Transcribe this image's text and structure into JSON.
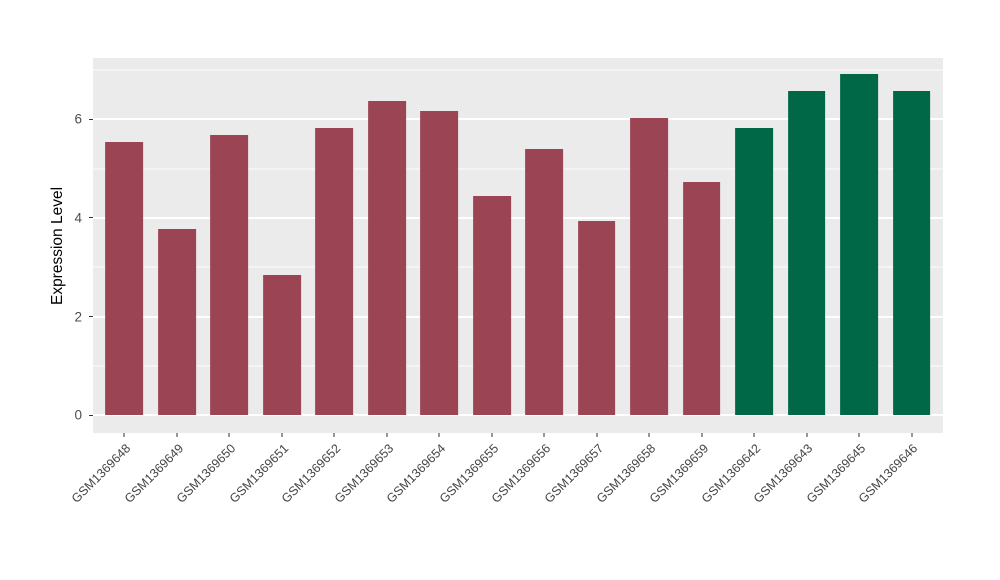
{
  "chart_data": {
    "type": "bar",
    "title": "",
    "xlabel": "",
    "ylabel": "Expression Level",
    "categories": [
      "GSM1369648",
      "GSM1369649",
      "GSM1369650",
      "GSM1369651",
      "GSM1369652",
      "GSM1369653",
      "GSM1369654",
      "GSM1369655",
      "GSM1369656",
      "GSM1369657",
      "GSM1369658",
      "GSM1369659",
      "GSM1369642",
      "GSM1369643",
      "GSM1369645",
      "GSM1369646"
    ],
    "values": [
      5.53,
      3.77,
      5.68,
      2.85,
      5.82,
      6.37,
      6.16,
      4.44,
      5.39,
      3.94,
      6.02,
      4.72,
      5.82,
      6.57,
      6.91,
      6.57
    ],
    "bar_colors": [
      "#9B4453",
      "#9B4453",
      "#9B4453",
      "#9B4453",
      "#9B4453",
      "#9B4453",
      "#9B4453",
      "#9B4453",
      "#9B4453",
      "#9B4453",
      "#9B4453",
      "#9B4453",
      "#006747",
      "#006747",
      "#006747",
      "#006747"
    ],
    "group_colors": {
      "left_group": "#9B4453",
      "right_group": "#006747"
    },
    "yticks": [
      0,
      2,
      4,
      6
    ],
    "minor_yticks": [
      1,
      3,
      5,
      7
    ],
    "ylim": [
      -0.36,
      7.24
    ],
    "bar_width_fraction": 0.72,
    "grid": true,
    "legend": "none",
    "panel_bg": "#EBEBEB",
    "gridline_color": "#FFFFFF"
  }
}
